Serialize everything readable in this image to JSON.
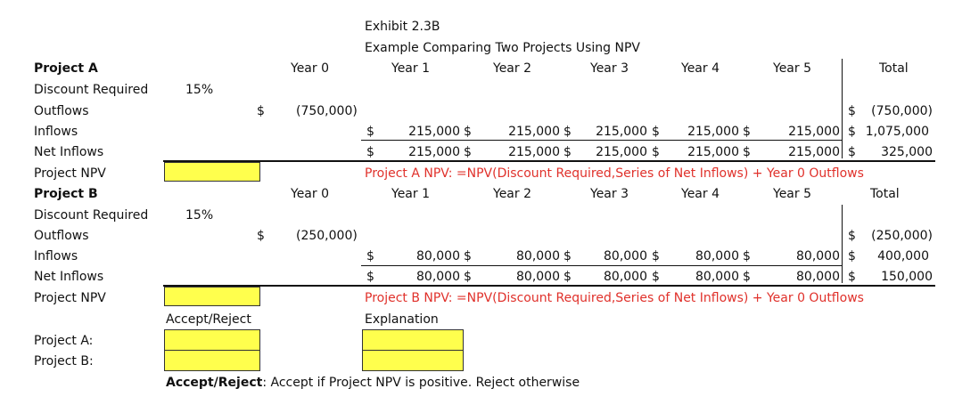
{
  "exhibit": {
    "title": "Exhibit 2.3B",
    "subtitle": "Example Comparing Two Projects Using NPV"
  },
  "labels": {
    "discount": "Discount Required",
    "outflows": "Outflows",
    "inflows": "Inflows",
    "net": "Net Inflows",
    "npv": "Project NPV",
    "total": "Total"
  },
  "years": [
    "Year 0",
    "Year 1",
    "Year 2",
    "Year 3",
    "Year 4",
    "Year 5"
  ],
  "project_a": {
    "name": "Project A",
    "rate": "15%",
    "outflow_y0": "(750,000)",
    "inflows": [
      "215,000",
      "215,000",
      "215,000",
      "215,000",
      "215,000"
    ],
    "net": [
      "215,000",
      "215,000",
      "215,000",
      "215,000",
      "215,000"
    ],
    "total_outflows": "(750,000)",
    "total_inflows": "1,075,000",
    "total_net": "325,000",
    "npv_note": "Project A NPV: =NPV(Discount Required,Series of Net Inflows) + Year 0 Outflows"
  },
  "project_b": {
    "name": "Project B",
    "rate": "15%",
    "outflow_y0": "(250,000)",
    "inflows": [
      "80,000",
      "80,000",
      "80,000",
      "80,000",
      "80,000"
    ],
    "net": [
      "80,000",
      "80,000",
      "80,000",
      "80,000",
      "80,000"
    ],
    "total_outflows": "(250,000)",
    "total_inflows": "400,000",
    "total_net": "150,000",
    "npv_note": "Project B NPV: =NPV(Discount Required,Series of Net Inflows) + Year 0 Outflows"
  },
  "decision": {
    "accept_reject_header": "Accept/Reject",
    "explanation_header": "Explanation",
    "project_a_label": "Project A:",
    "project_b_label": "Project B:",
    "rule_label": "Accept/Reject",
    "rule_text": ": Accept if Project NPV is positive. Reject otherwise"
  },
  "currency_symbol": "$"
}
